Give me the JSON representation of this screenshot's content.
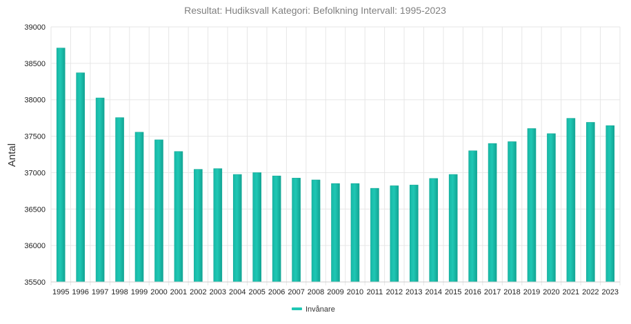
{
  "chart_data": {
    "type": "bar",
    "title": "Resultat: Hudiksvall Kategori: Befolkning Intervall: 1995-2023",
    "xlabel": "",
    "ylabel": "Antal",
    "ylim": [
      35500,
      39000
    ],
    "yticks": [
      35500,
      36000,
      36500,
      37000,
      37500,
      38000,
      38500,
      39000
    ],
    "grid": true,
    "legend_position": "bottom",
    "categories": [
      "1995",
      "1996",
      "1997",
      "1998",
      "1999",
      "2000",
      "2001",
      "2002",
      "2003",
      "2004",
      "2005",
      "2006",
      "2007",
      "2008",
      "2009",
      "2010",
      "2011",
      "2012",
      "2013",
      "2014",
      "2015",
      "2016",
      "2017",
      "2018",
      "2019",
      "2020",
      "2021",
      "2022",
      "2023"
    ],
    "series": [
      {
        "name": "Invånare",
        "color": "#1fc7b4",
        "values": [
          38710,
          38370,
          38025,
          37755,
          37555,
          37450,
          37290,
          37045,
          37055,
          36975,
          37000,
          36955,
          36925,
          36900,
          36850,
          36850,
          36785,
          36820,
          36830,
          36920,
          36975,
          37300,
          37400,
          37425,
          37605,
          37535,
          37745,
          37690,
          37645
        ]
      }
    ]
  }
}
